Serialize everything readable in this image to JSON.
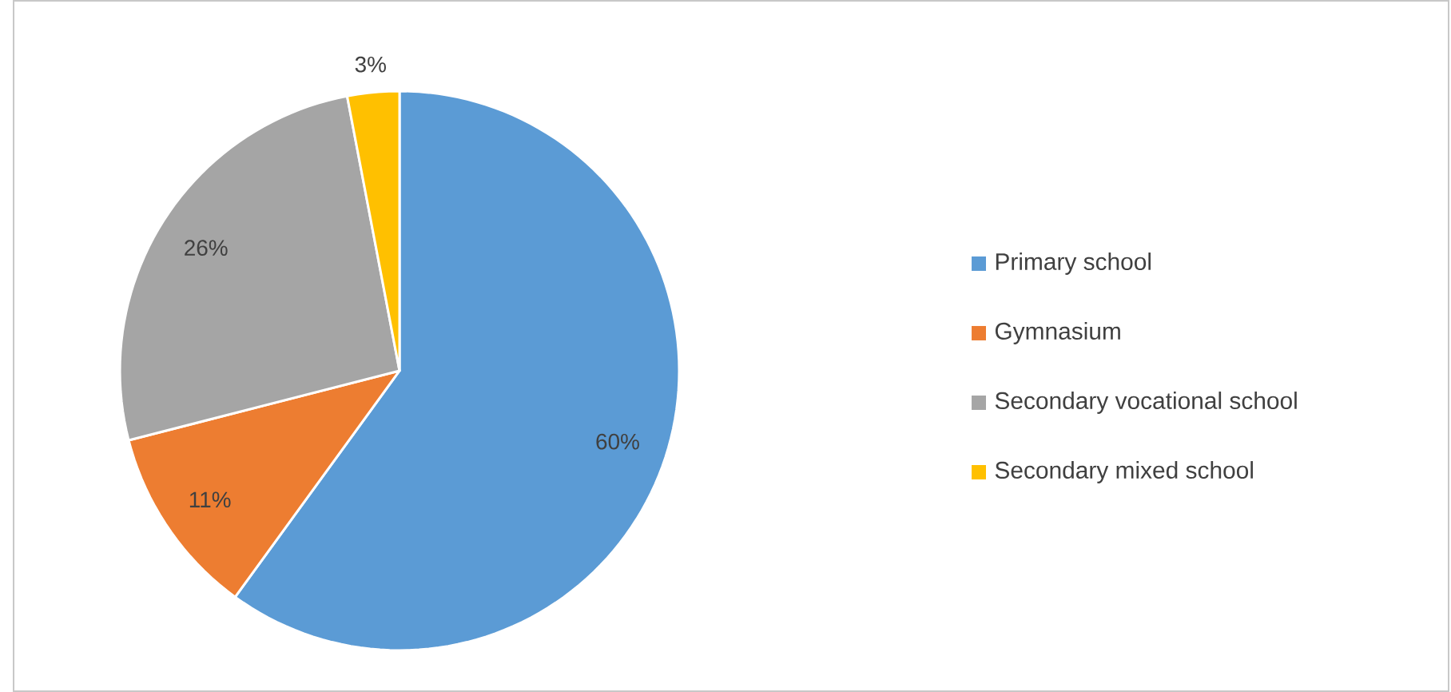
{
  "chart_data": {
    "type": "pie",
    "categories": [
      "Primary school",
      "Gymnasium",
      "Secondary vocational school",
      "Secondary mixed school"
    ],
    "values": [
      60,
      11,
      26,
      3
    ],
    "colors": [
      "#5b9bd5",
      "#ed7d31",
      "#a5a5a5",
      "#ffc000"
    ],
    "value_labels": [
      "60%",
      "11%",
      "26%",
      "3%"
    ],
    "legend": "right"
  }
}
